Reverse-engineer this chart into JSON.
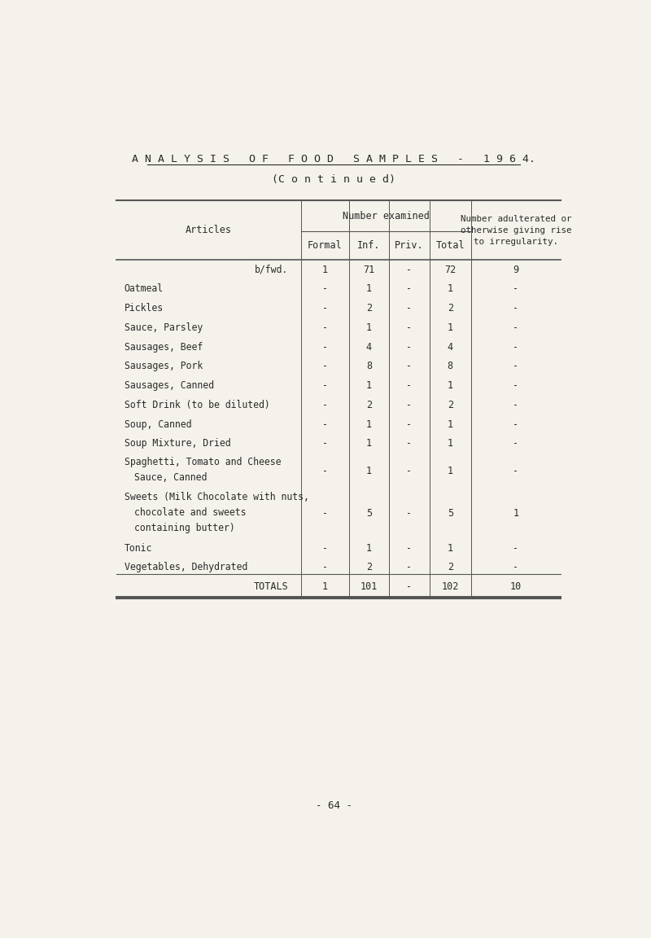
{
  "page_title": "A N A L Y S I S   O F   F O O D   S A M P L E S   -   1 9 6 4.",
  "subtitle": "(C o n t i n u e d)",
  "page_number": "- 64 -",
  "col_header_top": "Number examined",
  "col_header_right": "Number adulterated or\notherwise giving rise\nto irregularity.",
  "col_labels": [
    "Formal",
    "Inf.",
    "Priv.",
    "Total"
  ],
  "row_label_header": "Articles",
  "rows": [
    {
      "article": "b/fwd.",
      "formal": "1",
      "inf": "71",
      "priv": "-",
      "total": "72",
      "adulted": "9",
      "indent": true,
      "multiline": 1
    },
    {
      "article": "Oatmeal",
      "formal": "-",
      "inf": "1",
      "priv": "-",
      "total": "1",
      "adulted": "-",
      "indent": false,
      "multiline": 1
    },
    {
      "article": "Pickles",
      "formal": "-",
      "inf": "2",
      "priv": "-",
      "total": "2",
      "adulted": "-",
      "indent": false,
      "multiline": 1
    },
    {
      "article": "Sauce, Parsley",
      "formal": "-",
      "inf": "1",
      "priv": "-",
      "total": "1",
      "adulted": "-",
      "indent": false,
      "multiline": 1
    },
    {
      "article": "Sausages, Beef",
      "formal": "-",
      "inf": "4",
      "priv": "-",
      "total": "4",
      "adulted": "-",
      "indent": false,
      "multiline": 1
    },
    {
      "article": "Sausages, Pork",
      "formal": "-",
      "inf": "8",
      "priv": "-",
      "total": "8",
      "adulted": "-",
      "indent": false,
      "multiline": 1
    },
    {
      "article": "Sausages, Canned",
      "formal": "-",
      "inf": "1",
      "priv": "-",
      "total": "1",
      "adulted": "-",
      "indent": false,
      "multiline": 1
    },
    {
      "article": "Soft Drink (to be diluted)",
      "formal": "-",
      "inf": "2",
      "priv": "-",
      "total": "2",
      "adulted": "-",
      "indent": false,
      "multiline": 1
    },
    {
      "article": "Soup, Canned",
      "formal": "-",
      "inf": "1",
      "priv": "-",
      "total": "1",
      "adulted": "-",
      "indent": false,
      "multiline": 1
    },
    {
      "article": "Soup Mixture, Dried",
      "formal": "-",
      "inf": "1",
      "priv": "-",
      "total": "1",
      "adulted": "-",
      "indent": false,
      "multiline": 1
    },
    {
      "article": "Spaghetti, Tomato and Cheese\nSauce, Canned",
      "formal": "-",
      "inf": "1",
      "priv": "-",
      "total": "1",
      "adulted": "-",
      "indent": false,
      "multiline": 2
    },
    {
      "article": "Sweets (Milk Chocolate with nuts,\nchocolate and sweets\ncontaining butter)",
      "formal": "-",
      "inf": "5",
      "priv": "-",
      "total": "5",
      "adulted": "1",
      "indent": false,
      "multiline": 3
    },
    {
      "article": "Tonic",
      "formal": "-",
      "inf": "1",
      "priv": "-",
      "total": "1",
      "adulted": "-",
      "indent": false,
      "multiline": 1
    },
    {
      "article": "Vegetables, Dehydrated",
      "formal": "-",
      "inf": "2",
      "priv": "-",
      "total": "2",
      "adulted": "-",
      "indent": false,
      "multiline": 1
    }
  ],
  "totals": {
    "label": "TOTALS",
    "formal": "1",
    "inf": "101",
    "priv": "-",
    "total": "102",
    "adulted": "10"
  },
  "bg_color": "#f5f2eb",
  "text_color": "#2a2a2a",
  "line_color": "#555555"
}
